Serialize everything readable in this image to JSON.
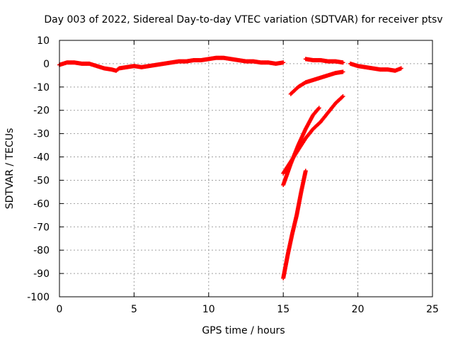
{
  "chart_data": {
    "type": "scatter",
    "title": "Day 003 of 2022, Sidereal Day-to-day VTEC variation (SDTVAR) for receiver ptsv",
    "xlabel": "GPS time / hours",
    "ylabel": "SDTVAR / TECUs",
    "xlim": [
      0,
      25
    ],
    "ylim": [
      -100,
      10
    ],
    "xticks": [
      "0",
      "5",
      "10",
      "15",
      "20",
      "25"
    ],
    "yticks": [
      "10",
      "0",
      "-10",
      "-20",
      "-30",
      "-40",
      "-50",
      "-60",
      "-70",
      "-80",
      "-90",
      "-100"
    ],
    "grid": true,
    "legend": "none",
    "marker_color": "#ff0000",
    "series": [
      {
        "x": [
          0.0,
          0.5,
          1.0,
          1.5,
          2.0,
          2.5,
          3.0,
          3.5,
          3.8,
          4.0,
          4.5,
          5.0,
          5.5,
          6.0,
          6.5,
          7.0,
          7.5,
          8.0,
          8.5,
          9.0,
          9.5,
          10.0,
          10.5,
          11.0,
          11.5,
          12.0,
          12.5,
          13.0,
          13.5,
          14.0,
          14.5,
          15.0
        ],
        "y": [
          -0.5,
          0.5,
          0.5,
          0,
          0,
          -1,
          -2,
          -2.5,
          -3,
          -2,
          -1.5,
          -1,
          -1.5,
          -1,
          -0.5,
          0,
          0.5,
          1,
          1,
          1.5,
          1.5,
          2,
          2.5,
          2.5,
          2,
          1.5,
          1,
          1,
          0.5,
          0.5,
          0,
          0.5
        ]
      },
      {
        "x": [
          16.5,
          17.0,
          17.5,
          18.0,
          18.5,
          19.0
        ],
        "y": [
          2,
          1.5,
          1.5,
          1,
          1,
          0.5
        ]
      },
      {
        "x": [
          19.5,
          20.0,
          20.5,
          21.0,
          21.5,
          22.0,
          22.5,
          22.9
        ],
        "y": [
          0,
          -1,
          -1.5,
          -2,
          -2.5,
          -2.5,
          -3,
          -2
        ]
      },
      {
        "x": [
          15.5,
          16.0,
          16.5,
          17.0,
          17.5,
          18.0,
          18.5,
          19.0
        ],
        "y": [
          -13,
          -10,
          -8,
          -7,
          -6,
          -5,
          -4,
          -3.5
        ]
      },
      {
        "x": [
          15.0,
          15.5,
          16.0,
          16.5,
          17.0,
          17.5,
          18.0,
          18.5,
          19.0
        ],
        "y": [
          -47,
          -42,
          -37,
          -32,
          -28,
          -25,
          -21,
          -17,
          -14
        ]
      },
      {
        "x": [
          15.0,
          15.5,
          16.0,
          16.5,
          17.0,
          17.4
        ],
        "y": [
          -52,
          -43,
          -35,
          -28,
          -22,
          -19
        ]
      },
      {
        "x": [
          15.0,
          15.3,
          15.6,
          15.9,
          16.2,
          16.5
        ],
        "y": [
          -92,
          -82,
          -73,
          -65,
          -55,
          -46
        ]
      }
    ]
  }
}
